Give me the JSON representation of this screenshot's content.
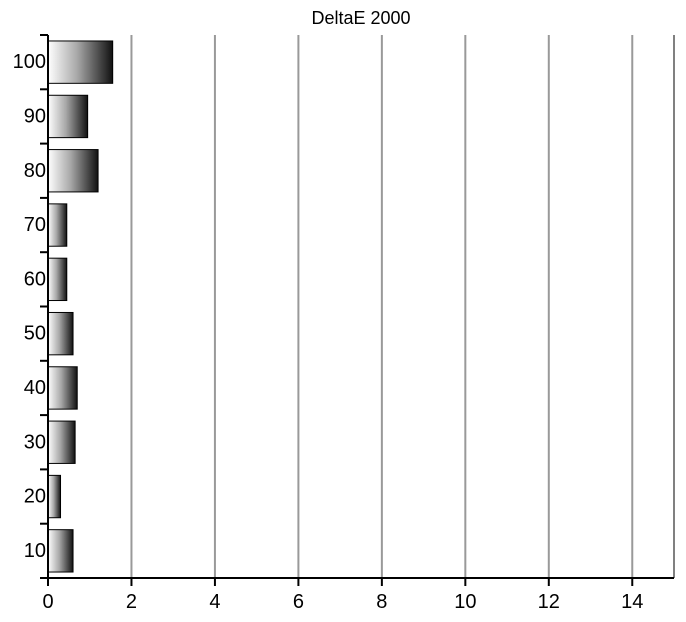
{
  "chart_data": {
    "type": "bar",
    "orientation": "horizontal",
    "title": "DeltaE 2000",
    "xlabel": "",
    "ylabel": "",
    "categories": [
      "10",
      "20",
      "30",
      "40",
      "50",
      "60",
      "70",
      "80",
      "90",
      "100"
    ],
    "values": [
      0.6,
      0.3,
      0.65,
      0.7,
      0.6,
      0.45,
      0.45,
      1.2,
      0.95,
      1.55
    ],
    "xlim": [
      0,
      15
    ],
    "x_ticks": [
      0,
      2,
      4,
      6,
      8,
      10,
      12,
      14
    ],
    "x_tick_labels": [
      "0",
      "2",
      "4",
      "6",
      "8",
      "10",
      "12",
      "14"
    ],
    "grid": "vertical",
    "legend": "none",
    "colors": {
      "bar_light": "#ffffff",
      "bar_dark": "#111111",
      "bar_stroke": "#000000",
      "grid": "#999999",
      "axis": "#000000",
      "frame": "#808080"
    }
  }
}
